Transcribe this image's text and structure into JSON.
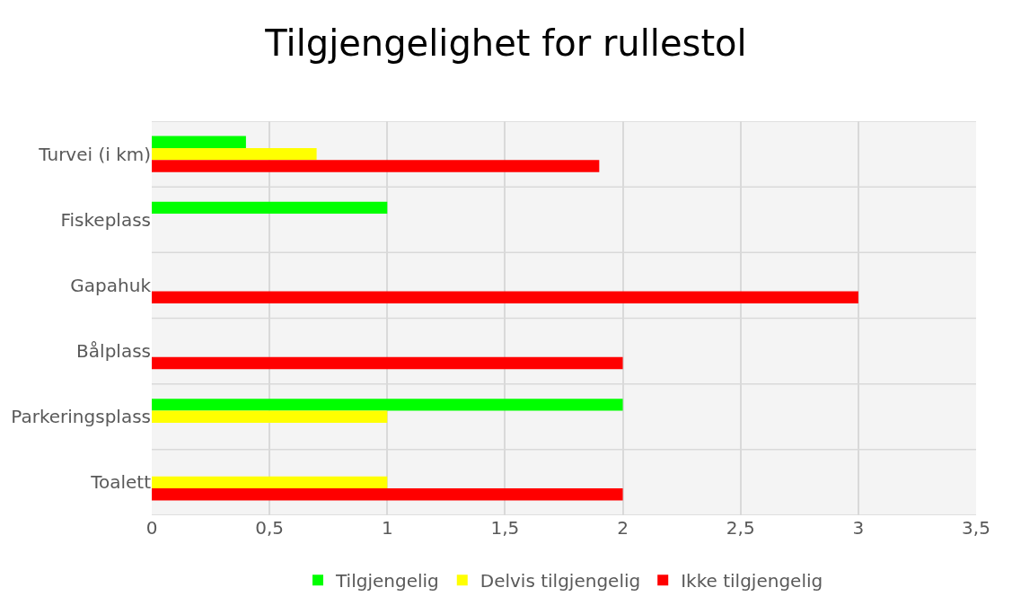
{
  "chart_data": {
    "type": "bar",
    "title": "Tilgjengelighet for rullestol",
    "orientation": "horizontal",
    "categories": [
      "Turvei (i km)",
      "Fiskeplass",
      "Gapahuk",
      "Bålplass",
      "Parkeringsplass",
      "Toalett"
    ],
    "series": [
      {
        "name": "Tilgjengelig",
        "color": "#00ff00",
        "values": [
          0.4,
          1,
          null,
          null,
          2,
          null
        ]
      },
      {
        "name": "Delvis tilgjengelig",
        "color": "#ffff00",
        "values": [
          0.7,
          null,
          null,
          null,
          1,
          1
        ]
      },
      {
        "name": "Ikke tilgjengelig",
        "color": "#ff0000",
        "values": [
          1.9,
          null,
          3,
          2,
          null,
          2
        ]
      }
    ],
    "xlim": [
      0,
      3.5
    ],
    "xticks": [
      0,
      {
        "value": 0.5,
        "label": "0,5"
      },
      1,
      {
        "value": 1.5,
        "label": "1,5"
      },
      2,
      {
        "value": 2.5,
        "label": "2,5"
      },
      3,
      {
        "value": 3.5,
        "label": "3,5"
      }
    ],
    "grid": true,
    "legend": "bottom"
  }
}
